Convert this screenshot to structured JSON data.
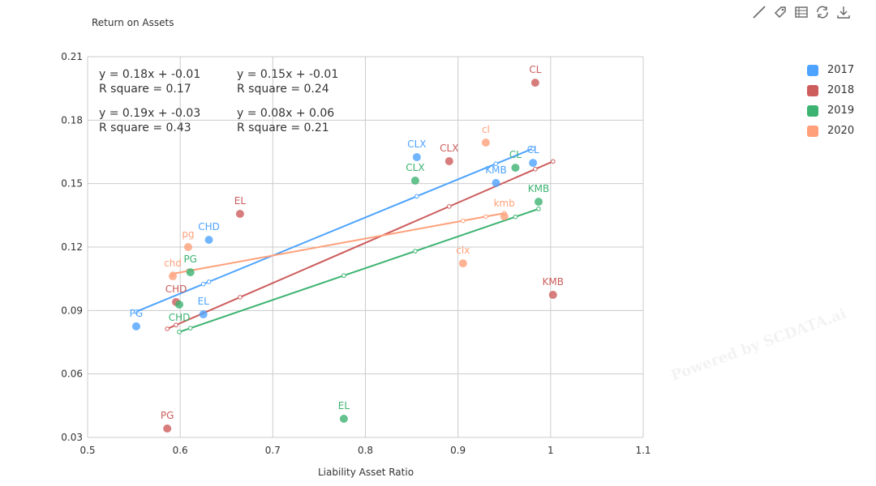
{
  "watermark": "Powered by SCDATA.ai",
  "toolbar": [
    {
      "icon": "line-icon"
    },
    {
      "icon": "tag-icon"
    },
    {
      "icon": "table-icon"
    },
    {
      "icon": "refresh-icon"
    },
    {
      "icon": "download-icon"
    }
  ],
  "chart_data": {
    "type": "scatter",
    "title": "Return on Assets",
    "xlabel": "Liability Asset Ratio",
    "ylabel": "Return on Assets",
    "xlim": [
      0.5,
      1.1
    ],
    "ylim": [
      0.03,
      0.21
    ],
    "xticks": [
      "0.5",
      "0.6",
      "0.7",
      "0.8",
      "0.9",
      "1",
      "1.1"
    ],
    "yticks": [
      "0.03",
      "0.06",
      "0.09",
      "0.12",
      "0.15",
      "0.18",
      "0.21"
    ],
    "grid": true,
    "legend_position": "right",
    "series": [
      {
        "name": "2017",
        "color": "#4da3ff",
        "points": [
          {
            "label": "PG",
            "x": 0.5525,
            "y": 0.0825
          },
          {
            "label": "EL",
            "x": 0.625,
            "y": 0.0882
          },
          {
            "label": "CHD",
            "x": 0.631,
            "y": 0.1234
          },
          {
            "label": "CLX",
            "x": 0.8555,
            "y": 0.1625
          },
          {
            "label": "KMB",
            "x": 0.941,
            "y": 0.1503
          },
          {
            "label": "CL",
            "x": 0.981,
            "y": 0.1598
          }
        ],
        "fit": {
          "slope": 0.18,
          "intercept": -0.01,
          "equation": "y = 0.18x + -0.01",
          "r2": "R square = 0.17"
        }
      },
      {
        "name": "2018",
        "color": "#cd5c5c",
        "points": [
          {
            "label": "PG",
            "x": 0.586,
            "y": 0.0342
          },
          {
            "label": "CHD",
            "x": 0.5955,
            "y": 0.094
          },
          {
            "label": "EL",
            "x": 0.6646,
            "y": 0.1357
          },
          {
            "label": "CLX",
            "x": 0.8905,
            "y": 0.1606
          },
          {
            "label": "CL",
            "x": 0.9834,
            "y": 0.1977
          },
          {
            "label": "KMB",
            "x": 1.0026,
            "y": 0.0974
          }
        ],
        "fit": {
          "slope": 0.19,
          "intercept": -0.03,
          "equation": "y = 0.19x + -0.03",
          "r2": "R square = 0.43"
        }
      },
      {
        "name": "2019",
        "color": "#3cb371",
        "points": [
          {
            "label": "CHD",
            "x": 0.599,
            "y": 0.0928
          },
          {
            "label": "PG",
            "x": 0.611,
            "y": 0.1081
          },
          {
            "label": "EL",
            "x": 0.7767,
            "y": 0.0388
          },
          {
            "label": "CLX",
            "x": 0.8538,
            "y": 0.1514
          },
          {
            "label": "CL",
            "x": 0.962,
            "y": 0.1575
          },
          {
            "label": "KMB",
            "x": 0.987,
            "y": 0.1414
          }
        ],
        "fit": {
          "slope": 0.15,
          "intercept": -0.01,
          "equation": "y = 0.15x + -0.01",
          "r2": "R square = 0.24"
        }
      },
      {
        "name": "2020",
        "color": "#ffa07a",
        "points": [
          {
            "label": "chd",
            "x": 0.592,
            "y": 0.1062
          },
          {
            "label": "pg",
            "x": 0.6086,
            "y": 0.12
          },
          {
            "label": "clx",
            "x": 0.9054,
            "y": 0.1123
          },
          {
            "label": "cl",
            "x": 0.93,
            "y": 0.1694
          },
          {
            "label": "kmb",
            "x": 0.95,
            "y": 0.1345
          }
        ],
        "fit": {
          "slope": 0.08,
          "intercept": 0.06,
          "equation": "y = 0.08x + 0.06",
          "r2": "R square = 0.21"
        }
      }
    ]
  }
}
